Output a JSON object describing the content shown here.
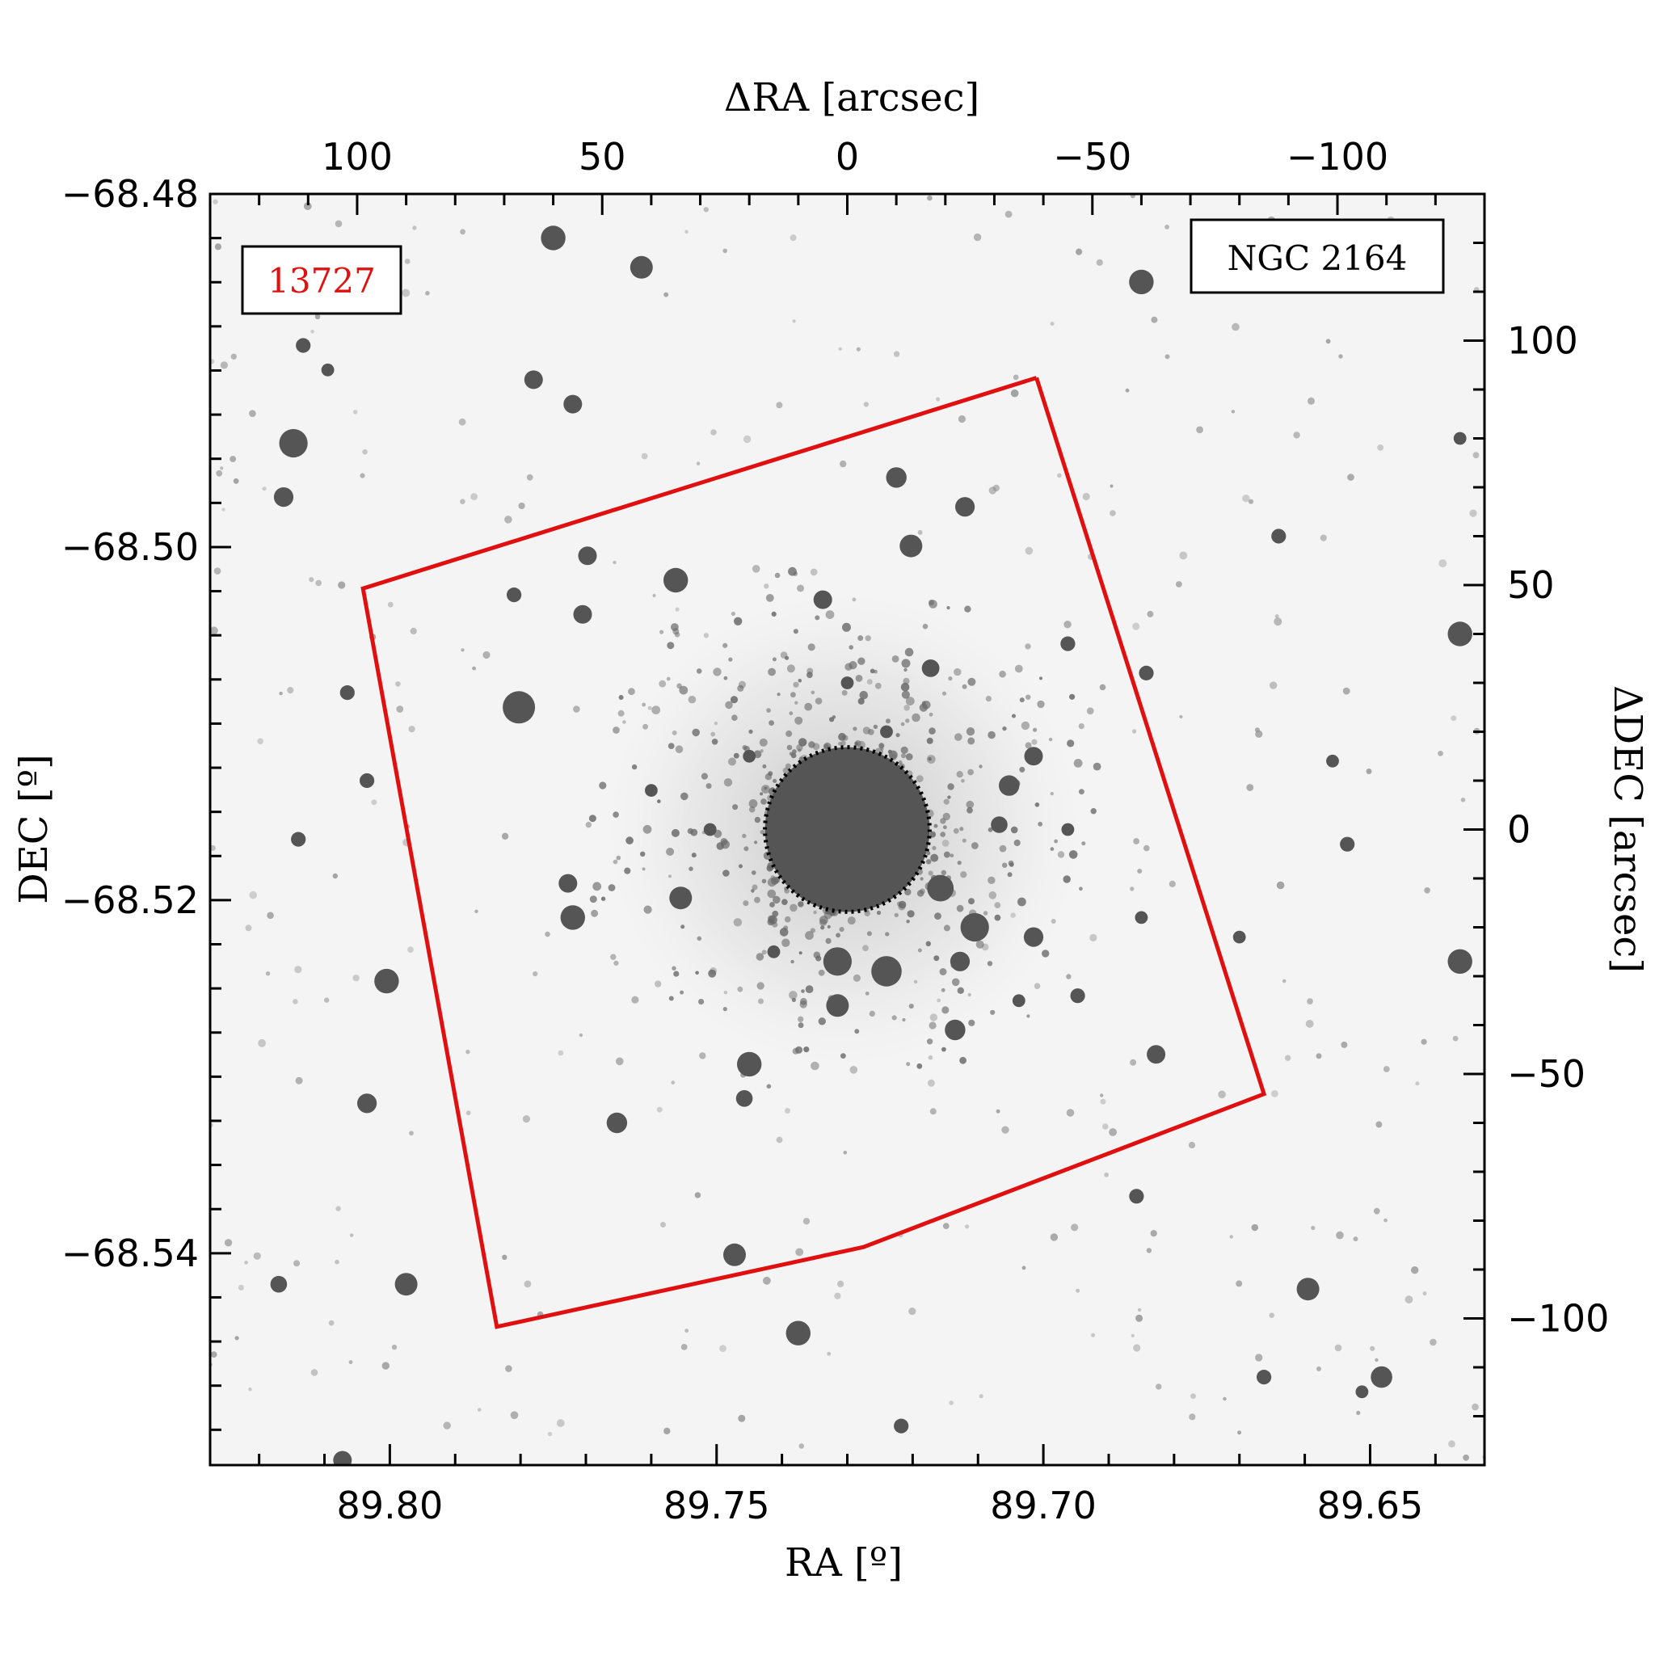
{
  "chart_data": {
    "type": "scatter",
    "image": "astronomical sky image (negative greyscale) with stars",
    "frame_color": "#000000",
    "footprint_color": "#e01010",
    "core_fill_color": "#555555",
    "star_color": "#555555",
    "axes": {
      "bottom": {
        "title": "RA [º]",
        "range": [
          89.8275,
          89.6325
        ],
        "ticks": [
          89.8,
          89.75,
          89.7,
          89.65
        ],
        "tick_labels": [
          "89.80",
          "89.75",
          "89.70",
          "89.65"
        ],
        "minor_step": 0.01
      },
      "left": {
        "title": "DEC [º]",
        "range": [
          -68.552,
          -68.48
        ],
        "ticks": [
          -68.48,
          -68.5,
          -68.52,
          -68.54
        ],
        "tick_labels": [
          "−68.48",
          "−68.50",
          "−68.52",
          "−68.54"
        ],
        "minor_step": 0.0025
      },
      "top": {
        "title": "ΔRA [arcsec]",
        "range": [
          130,
          -130
        ],
        "ticks": [
          100,
          50,
          0,
          -50,
          -100
        ],
        "tick_labels": [
          "100",
          "50",
          "0",
          "−50",
          "−100"
        ],
        "minor_step": 10
      },
      "right": {
        "title": "ΔDEC [arcsec]",
        "range": [
          -130,
          130
        ],
        "ticks": [
          100,
          50,
          0,
          -50,
          -100
        ],
        "tick_labels": [
          "100",
          "50",
          "0",
          "−50",
          "−100"
        ],
        "minor_step": 10
      }
    },
    "labels": {
      "dataset_id": "13727",
      "dataset_id_color": "#e01010",
      "target": "NGC 2164"
    },
    "footprint_polygon_arcsec": [
      [
        -38.6,
        92.4
      ],
      [
        98.8,
        49.3
      ],
      [
        71.5,
        -101.7
      ],
      [
        -3.3,
        -85.4
      ],
      [
        -85.0,
        -54.1
      ]
    ],
    "core_circle_arcsec": {
      "center": [
        0,
        0
      ],
      "radius": 16.8,
      "outline": "dotted"
    },
    "stars_arcsec": [
      [
        60,
        121,
        2.5
      ],
      [
        42,
        115,
        2.3
      ],
      [
        -60,
        112,
        2.5
      ],
      [
        64,
        92,
        1.9
      ],
      [
        111,
        99,
        1.5
      ],
      [
        106,
        94,
        1.3
      ],
      [
        56,
        87,
        1.9
      ],
      [
        113,
        79,
        2.9
      ],
      [
        115,
        68,
        2.0
      ],
      [
        -10,
        72,
        2.1
      ],
      [
        -24,
        66,
        2.0
      ],
      [
        -13,
        58,
        2.3
      ],
      [
        53,
        56,
        1.9
      ],
      [
        35,
        51,
        2.5
      ],
      [
        5,
        47,
        1.9
      ],
      [
        54,
        44,
        1.9
      ],
      [
        68,
        48,
        1.5
      ],
      [
        -17,
        33,
        1.8
      ],
      [
        -45,
        38,
        1.5
      ],
      [
        67,
        25,
        3.3
      ],
      [
        102,
        28,
        1.5
      ],
      [
        -33,
        9,
        2.1
      ],
      [
        -38,
        15,
        1.9
      ],
      [
        -31,
        1,
        1.7
      ],
      [
        -19,
        -12,
        2.7
      ],
      [
        -26,
        -20,
        2.9
      ],
      [
        -38,
        -22,
        2.0
      ],
      [
        -23,
        -27,
        2.0
      ],
      [
        57,
        -11,
        1.9
      ],
      [
        34,
        -14,
        2.3
      ],
      [
        56,
        -18,
        2.5
      ],
      [
        2,
        -27,
        2.9
      ],
      [
        -8,
        -29,
        3.1
      ],
      [
        2,
        -36,
        2.3
      ],
      [
        -22,
        -41,
        2.1
      ],
      [
        -47,
        -34,
        1.5
      ],
      [
        20,
        -48,
        2.5
      ],
      [
        21,
        -55,
        1.7
      ],
      [
        -63,
        -46,
        1.9
      ],
      [
        47,
        -60,
        2.1
      ],
      [
        -59,
        -75,
        1.5
      ],
      [
        23,
        -87,
        2.3
      ],
      [
        90,
        -93,
        2.3
      ],
      [
        116,
        -93,
        1.7
      ],
      [
        -94,
        -94,
        2.3
      ],
      [
        10,
        -103,
        2.5
      ],
      [
        -109,
        -112,
        2.2
      ],
      [
        -85,
        -112,
        1.5
      ],
      [
        103,
        -129,
        1.9
      ],
      [
        -11,
        -122,
        1.5
      ],
      [
        -105,
        -115,
        1.3
      ],
      [
        -125,
        -27,
        2.5
      ],
      [
        -125,
        40,
        2.5
      ],
      [
        -61,
        32,
        1.5
      ],
      [
        98,
        -56,
        2.0
      ],
      [
        94,
        -31,
        2.5
      ],
      [
        112,
        -2,
        1.5
      ],
      [
        -99,
        14,
        1.3
      ],
      [
        -88,
        60,
        1.5
      ],
      [
        -125,
        80,
        1.3
      ],
      [
        98,
        10,
        1.5
      ],
      [
        -102,
        -3,
        1.5
      ],
      [
        40,
        8,
        1.3
      ],
      [
        -60,
        -18,
        1.3
      ],
      [
        -80,
        -22,
        1.3
      ],
      [
        28,
        0,
        1.3
      ],
      [
        0,
        30,
        1.3
      ],
      [
        20,
        15,
        1.3
      ],
      [
        -45,
        0,
        1.3
      ],
      [
        -8,
        20,
        1.3
      ],
      [
        15,
        -25,
        1.3
      ],
      [
        -35,
        -35,
        1.3
      ]
    ]
  }
}
